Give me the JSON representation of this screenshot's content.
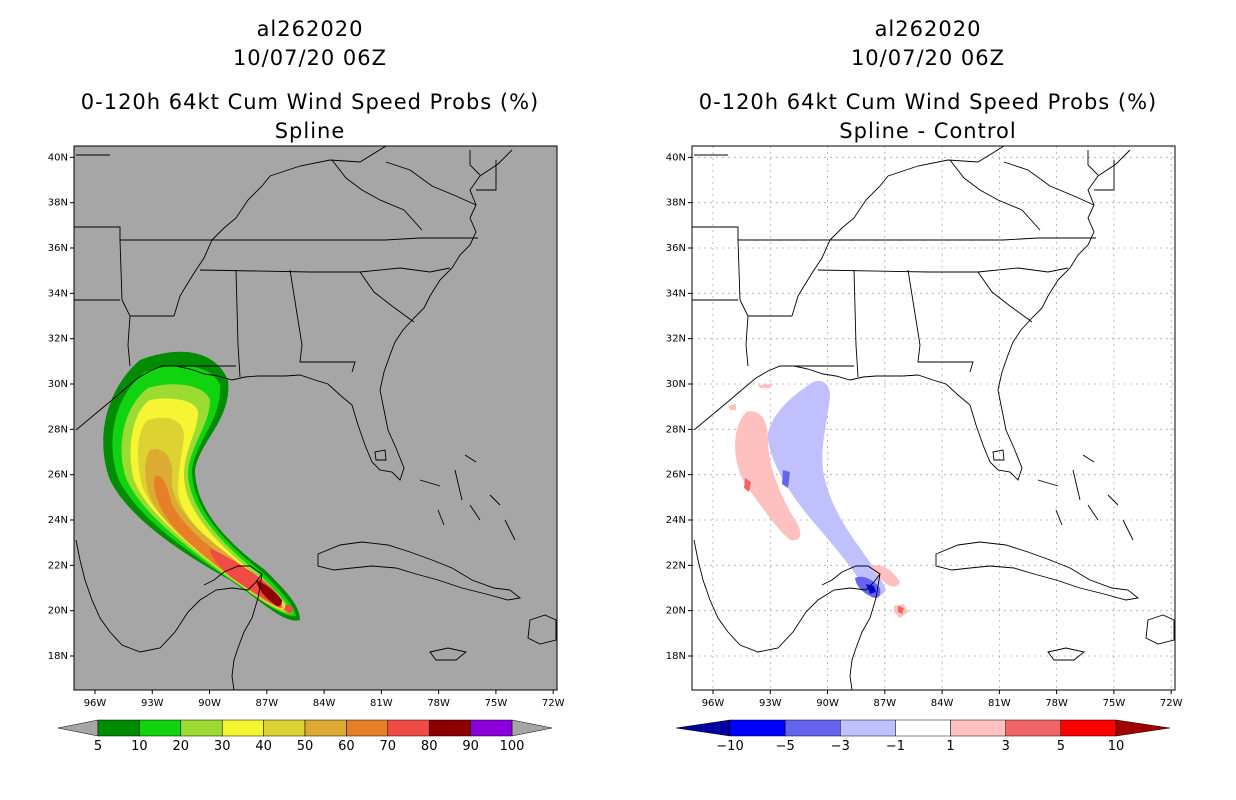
{
  "left": {
    "title_line1": "al262020",
    "title_line2": "10/07/20 06Z",
    "title_line3": "0-120h 64kt Cum Wind Speed Probs (%)",
    "title_line4": "Spline",
    "background_color": "#a6a6a6",
    "colorbar": {
      "colors": [
        "#008c00",
        "#11d411",
        "#9cdc32",
        "#f5f532",
        "#dcd232",
        "#dcab32",
        "#e67f28",
        "#f04b46",
        "#8c0000",
        "#8c00dc"
      ],
      "labels": [
        "5",
        "10",
        "20",
        "30",
        "40",
        "50",
        "60",
        "70",
        "80",
        "90",
        "100"
      ]
    }
  },
  "right": {
    "title_line1": "al262020",
    "title_line2": "10/07/20 06Z",
    "title_line3": "0-120h 64kt Cum Wind Speed Probs (%)",
    "title_line4": "Spline - Control",
    "background_color": "#ffffff",
    "colorbar": {
      "colors": [
        "#0000a0",
        "#0000ff",
        "#6464f0",
        "#c0c0ff",
        "#ffffff",
        "#ffc0c0",
        "#f06464",
        "#ff0000",
        "#a00000"
      ],
      "labels": [
        "-10",
        "-5",
        "-3",
        "-1",
        "1",
        "3",
        "5",
        "10"
      ]
    }
  },
  "axes": {
    "lat_labels": [
      "40N",
      "38N",
      "36N",
      "34N",
      "32N",
      "30N",
      "28N",
      "26N",
      "24N",
      "22N",
      "20N",
      "18N"
    ],
    "lon_labels": [
      "96W",
      "93W",
      "90W",
      "87W",
      "84W",
      "81W",
      "78W",
      "75W",
      "72W"
    ],
    "lat_range": [
      16.5,
      40.5
    ],
    "lon_range": [
      -97.1,
      -71.8
    ]
  }
}
